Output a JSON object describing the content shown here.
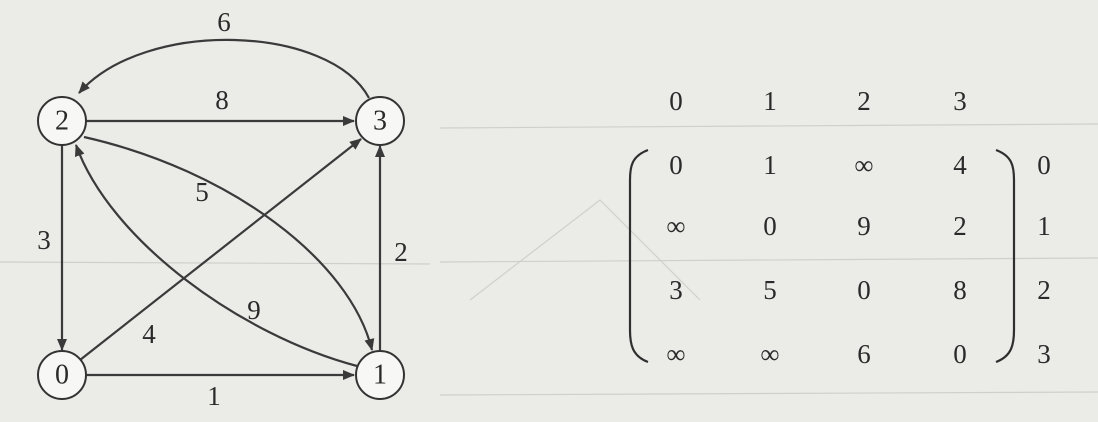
{
  "graph": {
    "nodes": [
      {
        "id": "0",
        "label": "0"
      },
      {
        "id": "1",
        "label": "1"
      },
      {
        "id": "2",
        "label": "2"
      },
      {
        "id": "3",
        "label": "3"
      }
    ],
    "edges": [
      {
        "from": "3",
        "to": "2",
        "weight": "6"
      },
      {
        "from": "2",
        "to": "3",
        "weight": "8"
      },
      {
        "from": "2",
        "to": "1",
        "weight": "5"
      },
      {
        "from": "1",
        "to": "2",
        "weight": "9"
      },
      {
        "from": "2",
        "to": "0",
        "weight": "3"
      },
      {
        "from": "0",
        "to": "3",
        "weight": "4"
      },
      {
        "from": "1",
        "to": "3",
        "weight": "2"
      },
      {
        "from": "0",
        "to": "1",
        "weight": "1"
      }
    ]
  },
  "matrix": {
    "column_headers": [
      "0",
      "1",
      "2",
      "3"
    ],
    "row_headers": [
      "0",
      "1",
      "2",
      "3"
    ],
    "rows": [
      [
        "0",
        "1",
        "∞",
        "4"
      ],
      [
        "∞",
        "0",
        "9",
        "2"
      ],
      [
        "3",
        "5",
        "0",
        "8"
      ],
      [
        "∞",
        "∞",
        "6",
        "0"
      ]
    ]
  }
}
